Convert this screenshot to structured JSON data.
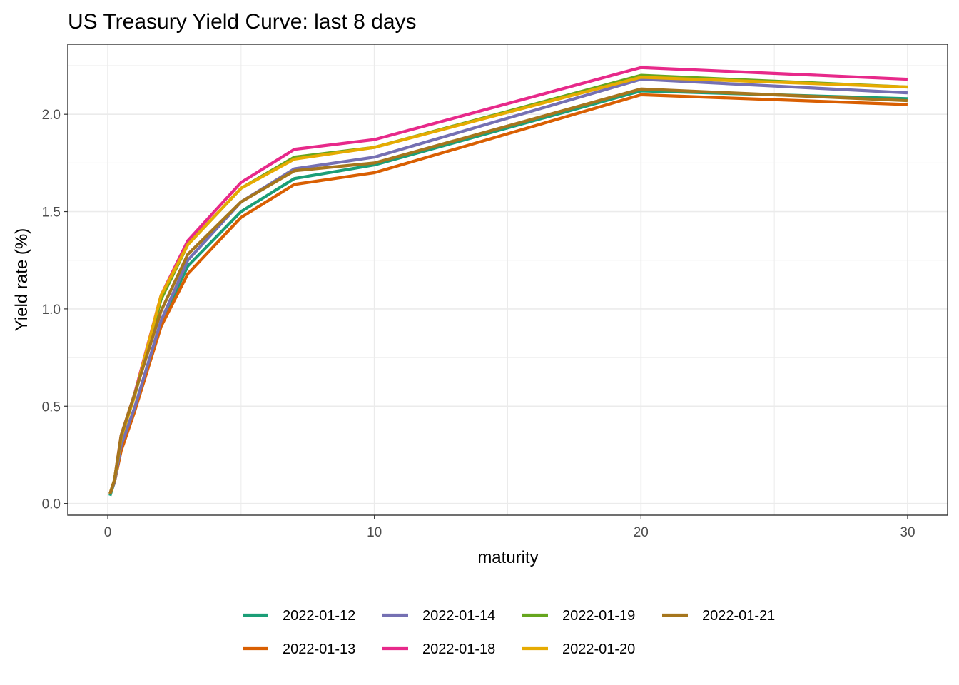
{
  "chart_data": {
    "type": "line",
    "title": "US Treasury Yield Curve: last 8 days",
    "xlabel": "maturity",
    "ylabel": "Yield rate (%)",
    "xlim": [
      -1.5,
      31.5
    ],
    "ylim": [
      -0.06,
      2.36
    ],
    "xticks": [
      0,
      10,
      20,
      30
    ],
    "xtick_labels": [
      "0",
      "10",
      "20",
      "30"
    ],
    "yticks": [
      0.0,
      0.5,
      1.0,
      1.5,
      2.0
    ],
    "ytick_labels": [
      "0.0",
      "0.5",
      "1.0",
      "1.5",
      "2.0"
    ],
    "grid": true,
    "legend_position": "bottom",
    "x": [
      0.0833,
      0.25,
      0.5,
      1,
      2,
      3,
      5,
      7,
      10,
      20,
      30
    ],
    "series": [
      {
        "name": "2022-01-12",
        "color": "#1B9E77",
        "values": [
          0.04,
          0.11,
          0.28,
          0.48,
          0.93,
          1.22,
          1.5,
          1.67,
          1.74,
          2.12,
          2.08
        ]
      },
      {
        "name": "2022-01-13",
        "color": "#D95F02",
        "values": [
          0.05,
          0.11,
          0.27,
          0.47,
          0.91,
          1.18,
          1.47,
          1.64,
          1.7,
          2.1,
          2.05
        ]
      },
      {
        "name": "2022-01-14",
        "color": "#7570B3",
        "values": [
          0.05,
          0.11,
          0.3,
          0.49,
          0.94,
          1.25,
          1.55,
          1.72,
          1.78,
          2.18,
          2.11
        ]
      },
      {
        "name": "2022-01-18",
        "color": "#E7298A",
        "values": [
          0.05,
          0.12,
          0.35,
          0.56,
          1.07,
          1.35,
          1.65,
          1.82,
          1.87,
          2.24,
          2.18
        ]
      },
      {
        "name": "2022-01-19",
        "color": "#66A61E",
        "values": [
          0.05,
          0.12,
          0.34,
          0.55,
          1.05,
          1.33,
          1.62,
          1.78,
          1.83,
          2.2,
          2.14
        ]
      },
      {
        "name": "2022-01-20",
        "color": "#E6AB02",
        "values": [
          0.05,
          0.12,
          0.34,
          0.55,
          1.07,
          1.33,
          1.62,
          1.77,
          1.83,
          2.19,
          2.14
        ]
      },
      {
        "name": "2022-01-21",
        "color": "#A6761D",
        "values": [
          0.05,
          0.12,
          0.35,
          0.56,
          0.99,
          1.28,
          1.55,
          1.71,
          1.75,
          2.13,
          2.07
        ]
      }
    ],
    "legend_order": [
      "2022-01-12",
      "2022-01-14",
      "2022-01-19",
      "2022-01-21",
      "2022-01-13",
      "2022-01-18",
      "2022-01-20"
    ]
  }
}
